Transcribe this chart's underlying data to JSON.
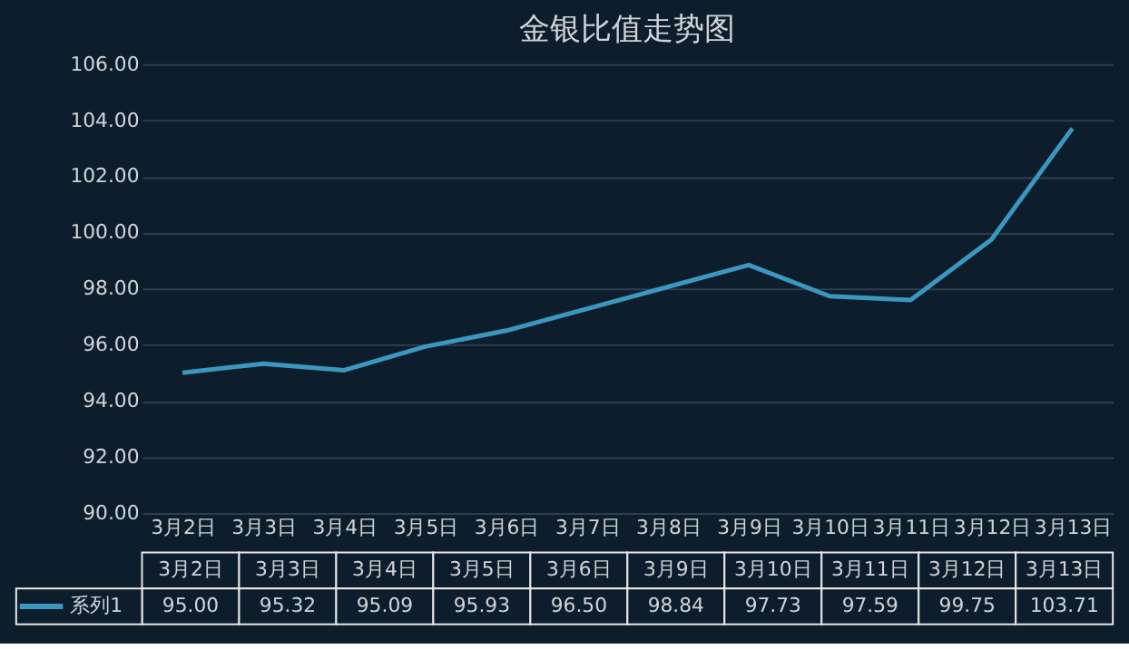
{
  "chart_data": [
    {
      "type": "line",
      "title": "金银比值走势图",
      "categories": [
        "3月2日",
        "3月3日",
        "3月4日",
        "3月5日",
        "3月6日",
        "3月7日",
        "3月8日",
        "3月9日",
        "3月10日",
        "3月11日",
        "3月12日",
        "3月13日"
      ],
      "series": [
        {
          "name": "系列1",
          "color": "#3a98c0",
          "x": [
            "3月2日",
            "3月3日",
            "3月4日",
            "3月5日",
            "3月6日",
            "3月9日",
            "3月10日",
            "3月11日",
            "3月12日",
            "3月13日"
          ],
          "values": [
            95.0,
            95.32,
            95.09,
            95.93,
            96.5,
            98.84,
            97.73,
            97.59,
            99.75,
            103.71
          ]
        }
      ],
      "ylim": [
        90,
        106
      ],
      "yticks": [
        {
          "value": 90,
          "label": "90.00"
        },
        {
          "value": 92,
          "label": "92.00"
        },
        {
          "value": 94,
          "label": "94.00"
        },
        {
          "value": 96,
          "label": "96.00"
        },
        {
          "value": 98,
          "label": "98.00"
        },
        {
          "value": 100,
          "label": "100.00"
        },
        {
          "value": 102,
          "label": "102.00"
        },
        {
          "value": 104,
          "label": "104.00"
        },
        {
          "value": 106,
          "label": "106.00"
        }
      ],
      "grid": "y",
      "legend": "bottom left",
      "marker": "none",
      "line_style": "solid"
    },
    {
      "type": "other",
      "categories": [
        "3月2日",
        "3月3日",
        "3月4日",
        "3月5日",
        "3月6日",
        "3月9日",
        "3月10日",
        "3月11日",
        "3月12日",
        "3月13日"
      ],
      "value_labels": [
        "95.00",
        "95.32",
        "95.09",
        "95.93",
        "96.50",
        "98.84",
        "97.73",
        "97.59",
        "99.75",
        "103.71"
      ]
    }
  ]
}
